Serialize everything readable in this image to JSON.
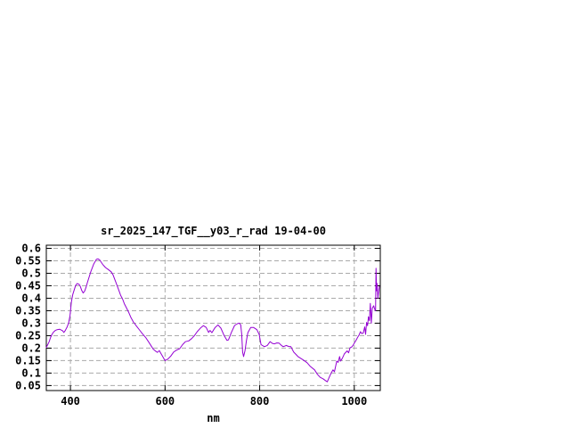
{
  "window": {
    "background": "#ffffff"
  },
  "chart_data": {
    "type": "line",
    "title": "sr_2025_147_TGF__y03_r_rad 19-04-00",
    "xlabel": "nm",
    "ylabel": "",
    "legend": "none",
    "grid": true,
    "xlim": [
      349,
      1055
    ],
    "ylim": [
      0.03,
      0.6125
    ],
    "x_tick_values": [
      400,
      600,
      800,
      1000
    ],
    "x_tick_labels": [
      "400",
      "600",
      "800",
      "1000"
    ],
    "y_tick_values": [
      0.05,
      0.1,
      0.15,
      0.2,
      0.25,
      0.3,
      0.35,
      0.4,
      0.45,
      0.5,
      0.55,
      0.6
    ],
    "y_tick_labels": [
      "0.05",
      "0.1",
      "0.15",
      "0.2",
      "0.25",
      "0.3",
      "0.35",
      "0.4",
      "0.45",
      "0.5",
      "0.55",
      "0.6"
    ],
    "colors": {
      "line": "#9400d3",
      "grid": "#aaaaaa",
      "border": "#000000",
      "text": "#000000",
      "background": "#ffffff"
    },
    "series": [
      {
        "name": "sr_2025_147_TGF__y03_r_rad 19-04-00",
        "points": [
          [
            349,
            0.203
          ],
          [
            352,
            0.214
          ],
          [
            355,
            0.226
          ],
          [
            358,
            0.243
          ],
          [
            361,
            0.255
          ],
          [
            364,
            0.264
          ],
          [
            368,
            0.271
          ],
          [
            372,
            0.274
          ],
          [
            377,
            0.276
          ],
          [
            383,
            0.27
          ],
          [
            386,
            0.263
          ],
          [
            389,
            0.27
          ],
          [
            393,
            0.285
          ],
          [
            396,
            0.3
          ],
          [
            399,
            0.33
          ],
          [
            402,
            0.386
          ],
          [
            405,
            0.415
          ],
          [
            408,
            0.433
          ],
          [
            411,
            0.451
          ],
          [
            414,
            0.459
          ],
          [
            418,
            0.456
          ],
          [
            421,
            0.447
          ],
          [
            424,
            0.431
          ],
          [
            427,
            0.421
          ],
          [
            430,
            0.428
          ],
          [
            433,
            0.444
          ],
          [
            436,
            0.464
          ],
          [
            443,
            0.506
          ],
          [
            449,
            0.536
          ],
          [
            455,
            0.556
          ],
          [
            458,
            0.558
          ],
          [
            462,
            0.553
          ],
          [
            468,
            0.536
          ],
          [
            474,
            0.523
          ],
          [
            480,
            0.515
          ],
          [
            486,
            0.506
          ],
          [
            490,
            0.494
          ],
          [
            496,
            0.464
          ],
          [
            502,
            0.433
          ],
          [
            506,
            0.412
          ],
          [
            510,
            0.398
          ],
          [
            514,
            0.378
          ],
          [
            519,
            0.359
          ],
          [
            523,
            0.344
          ],
          [
            528,
            0.322
          ],
          [
            533,
            0.305
          ],
          [
            540,
            0.287
          ],
          [
            546,
            0.273
          ],
          [
            552,
            0.258
          ],
          [
            559,
            0.243
          ],
          [
            565,
            0.226
          ],
          [
            571,
            0.208
          ],
          [
            575,
            0.196
          ],
          [
            580,
            0.188
          ],
          [
            584,
            0.183
          ],
          [
            588,
            0.19
          ],
          [
            592,
            0.176
          ],
          [
            596,
            0.163
          ],
          [
            600,
            0.15
          ],
          [
            606,
            0.156
          ],
          [
            612,
            0.168
          ],
          [
            618,
            0.184
          ],
          [
            624,
            0.192
          ],
          [
            631,
            0.198
          ],
          [
            637,
            0.214
          ],
          [
            643,
            0.226
          ],
          [
            650,
            0.229
          ],
          [
            656,
            0.238
          ],
          [
            662,
            0.25
          ],
          [
            668,
            0.266
          ],
          [
            675,
            0.281
          ],
          [
            681,
            0.29
          ],
          [
            687,
            0.283
          ],
          [
            692,
            0.263
          ],
          [
            695,
            0.271
          ],
          [
            699,
            0.262
          ],
          [
            706,
            0.283
          ],
          [
            712,
            0.293
          ],
          [
            718,
            0.28
          ],
          [
            725,
            0.25
          ],
          [
            731,
            0.231
          ],
          [
            734,
            0.233
          ],
          [
            740,
            0.262
          ],
          [
            747,
            0.291
          ],
          [
            753,
            0.298
          ],
          [
            757,
            0.3
          ],
          [
            760,
            0.293
          ],
          [
            762,
            0.256
          ],
          [
            764,
            0.184
          ],
          [
            766,
            0.166
          ],
          [
            769,
            0.19
          ],
          [
            772,
            0.23
          ],
          [
            775,
            0.262
          ],
          [
            781,
            0.283
          ],
          [
            787,
            0.283
          ],
          [
            794,
            0.274
          ],
          [
            799,
            0.255
          ],
          [
            803,
            0.214
          ],
          [
            810,
            0.206
          ],
          [
            816,
            0.211
          ],
          [
            822,
            0.226
          ],
          [
            827,
            0.219
          ],
          [
            831,
            0.217
          ],
          [
            836,
            0.221
          ],
          [
            841,
            0.22
          ],
          [
            846,
            0.211
          ],
          [
            850,
            0.206
          ],
          [
            856,
            0.211
          ],
          [
            861,
            0.207
          ],
          [
            866,
            0.206
          ],
          [
            872,
            0.184
          ],
          [
            881,
            0.166
          ],
          [
            891,
            0.154
          ],
          [
            900,
            0.142
          ],
          [
            907,
            0.127
          ],
          [
            916,
            0.113
          ],
          [
            922,
            0.095
          ],
          [
            928,
            0.083
          ],
          [
            934,
            0.077
          ],
          [
            939,
            0.07
          ],
          [
            943,
            0.065
          ],
          [
            947,
            0.083
          ],
          [
            951,
            0.1
          ],
          [
            955,
            0.113
          ],
          [
            958,
            0.105
          ],
          [
            963,
            0.148
          ],
          [
            966,
            0.143
          ],
          [
            969,
            0.166
          ],
          [
            971,
            0.148
          ],
          [
            975,
            0.16
          ],
          [
            979,
            0.177
          ],
          [
            985,
            0.189
          ],
          [
            988,
            0.181
          ],
          [
            991,
            0.201
          ],
          [
            995,
            0.205
          ],
          [
            998,
            0.213
          ],
          [
            1001,
            0.223
          ],
          [
            1004,
            0.232
          ],
          [
            1007,
            0.243
          ],
          [
            1010,
            0.252
          ],
          [
            1013,
            0.266
          ],
          [
            1016,
            0.258
          ],
          [
            1019,
            0.261
          ],
          [
            1022,
            0.285
          ],
          [
            1024,
            0.255
          ],
          [
            1026,
            0.303
          ],
          [
            1028,
            0.29
          ],
          [
            1030,
            0.326
          ],
          [
            1032,
            0.31
          ],
          [
            1034,
            0.379
          ],
          [
            1036,
            0.3
          ],
          [
            1038,
            0.36
          ],
          [
            1041,
            0.37
          ],
          [
            1043,
            0.357
          ],
          [
            1045,
            0.35
          ],
          [
            1046,
            0.52
          ],
          [
            1047,
            0.43
          ],
          [
            1048,
            0.46
          ],
          [
            1050,
            0.4
          ],
          [
            1051,
            0.42
          ],
          [
            1053,
            0.447
          ]
        ]
      }
    ]
  }
}
